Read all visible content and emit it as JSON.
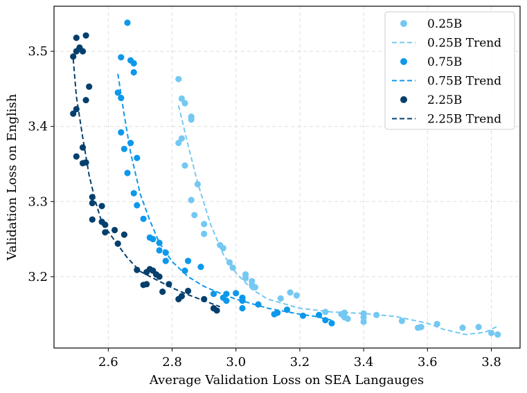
{
  "chart_data": {
    "type": "scatter",
    "xlabel": "Average Validation Loss on SEA Langauges",
    "ylabel": "Validation Loss on English",
    "xlim": [
      2.43,
      3.89
    ],
    "ylim": [
      3.105,
      3.56
    ],
    "xticks": [
      "2.6",
      "2.8",
      "3.0",
      "3.2",
      "3.4",
      "3.6",
      "3.8"
    ],
    "xtick_values": [
      2.6,
      2.8,
      3.0,
      3.2,
      3.4,
      3.6,
      3.8
    ],
    "yticks": [
      "3.2",
      "3.3",
      "3.4",
      "3.5"
    ],
    "ytick_values": [
      3.2,
      3.3,
      3.4,
      3.5
    ],
    "grid": true,
    "legend_position": "top-right",
    "legend": [
      "0.25B",
      "0.25B Trend",
      "0.75B",
      "0.75B Trend",
      "2.25B",
      "2.25B Trend"
    ],
    "series": [
      {
        "name": "0.25B",
        "color": "#74c8f2",
        "trend_name": "0.25B Trend",
        "points": [
          [
            2.82,
            3.463
          ],
          [
            2.83,
            3.437
          ],
          [
            2.84,
            3.431
          ],
          [
            2.86,
            3.413
          ],
          [
            2.86,
            3.409
          ],
          [
            2.82,
            3.378
          ],
          [
            2.83,
            3.384
          ],
          [
            2.84,
            3.348
          ],
          [
            2.88,
            3.323
          ],
          [
            2.86,
            3.302
          ],
          [
            2.87,
            3.282
          ],
          [
            2.9,
            3.27
          ],
          [
            2.9,
            3.257
          ],
          [
            2.95,
            3.242
          ],
          [
            2.96,
            3.238
          ],
          [
            2.98,
            3.219
          ],
          [
            2.99,
            3.212
          ],
          [
            3.03,
            3.198
          ],
          [
            3.03,
            3.203
          ],
          [
            3.05,
            3.194
          ],
          [
            3.05,
            3.189
          ],
          [
            3.06,
            3.186
          ],
          [
            3.14,
            3.171
          ],
          [
            3.17,
            3.179
          ],
          [
            3.19,
            3.175
          ],
          [
            3.28,
            3.153
          ],
          [
            3.33,
            3.15
          ],
          [
            3.34,
            3.146
          ],
          [
            3.34,
            3.152
          ],
          [
            3.35,
            3.144
          ],
          [
            3.4,
            3.151
          ],
          [
            3.4,
            3.146
          ],
          [
            3.4,
            3.14
          ],
          [
            3.44,
            3.149
          ],
          [
            3.52,
            3.141
          ],
          [
            3.57,
            3.132
          ],
          [
            3.58,
            3.133
          ],
          [
            3.63,
            3.137
          ],
          [
            3.71,
            3.132
          ],
          [
            3.76,
            3.133
          ],
          [
            3.8,
            3.125
          ],
          [
            3.82,
            3.123
          ]
        ],
        "trend": [
          [
            2.82,
            3.428
          ],
          [
            2.85,
            3.375
          ],
          [
            2.88,
            3.325
          ],
          [
            2.92,
            3.27
          ],
          [
            2.96,
            3.23
          ],
          [
            3.0,
            3.205
          ],
          [
            3.05,
            3.183
          ],
          [
            3.1,
            3.17
          ],
          [
            3.2,
            3.158
          ],
          [
            3.3,
            3.153
          ],
          [
            3.4,
            3.151
          ],
          [
            3.5,
            3.147
          ],
          [
            3.6,
            3.138
          ],
          [
            3.65,
            3.13
          ],
          [
            3.72,
            3.123
          ],
          [
            3.78,
            3.126
          ],
          [
            3.82,
            3.134
          ]
        ]
      },
      {
        "name": "0.75B",
        "color": "#0d98eb",
        "trend_name": "0.75B Trend",
        "points": [
          [
            2.66,
            3.538
          ],
          [
            2.64,
            3.492
          ],
          [
            2.67,
            3.488
          ],
          [
            2.68,
            3.484
          ],
          [
            2.68,
            3.472
          ],
          [
            2.63,
            3.445
          ],
          [
            2.64,
            3.438
          ],
          [
            2.64,
            3.392
          ],
          [
            2.67,
            3.378
          ],
          [
            2.65,
            3.37
          ],
          [
            2.69,
            3.358
          ],
          [
            2.66,
            3.338
          ],
          [
            2.68,
            3.311
          ],
          [
            2.69,
            3.295
          ],
          [
            2.71,
            3.277
          ],
          [
            2.73,
            3.252
          ],
          [
            2.74,
            3.25
          ],
          [
            2.76,
            3.245
          ],
          [
            2.76,
            3.235
          ],
          [
            2.78,
            3.232
          ],
          [
            2.78,
            3.221
          ],
          [
            2.85,
            3.221
          ],
          [
            2.84,
            3.208
          ],
          [
            2.89,
            3.213
          ],
          [
            2.93,
            3.177
          ],
          [
            2.96,
            3.172
          ],
          [
            2.97,
            3.177
          ],
          [
            2.97,
            3.168
          ],
          [
            3.0,
            3.178
          ],
          [
            3.02,
            3.172
          ],
          [
            3.02,
            3.168
          ],
          [
            3.02,
            3.158
          ],
          [
            3.07,
            3.163
          ],
          [
            3.12,
            3.15
          ],
          [
            3.13,
            3.152
          ],
          [
            3.16,
            3.156
          ],
          [
            3.21,
            3.148
          ],
          [
            3.26,
            3.149
          ],
          [
            3.28,
            3.142
          ],
          [
            3.3,
            3.138
          ]
        ],
        "trend": [
          [
            2.63,
            3.47
          ],
          [
            2.65,
            3.415
          ],
          [
            2.67,
            3.365
          ],
          [
            2.7,
            3.31
          ],
          [
            2.73,
            3.275
          ],
          [
            2.76,
            3.245
          ],
          [
            2.8,
            3.22
          ],
          [
            2.85,
            3.2
          ],
          [
            2.9,
            3.187
          ],
          [
            2.95,
            3.178
          ],
          [
            3.0,
            3.17
          ],
          [
            3.05,
            3.164
          ],
          [
            3.1,
            3.158
          ],
          [
            3.15,
            3.154
          ],
          [
            3.2,
            3.15
          ],
          [
            3.25,
            3.147
          ],
          [
            3.3,
            3.142
          ]
        ]
      },
      {
        "name": "2.25B",
        "color": "#053f6c",
        "trend_name": "2.25B Trend",
        "points": [
          [
            2.53,
            3.521
          ],
          [
            2.5,
            3.518
          ],
          [
            2.51,
            3.505
          ],
          [
            2.5,
            3.5
          ],
          [
            2.52,
            3.5
          ],
          [
            2.49,
            3.493
          ],
          [
            2.54,
            3.453
          ],
          [
            2.53,
            3.435
          ],
          [
            2.5,
            3.423
          ],
          [
            2.49,
            3.417
          ],
          [
            2.52,
            3.372
          ],
          [
            2.5,
            3.36
          ],
          [
            2.52,
            3.351
          ],
          [
            2.53,
            3.352
          ],
          [
            2.55,
            3.306
          ],
          [
            2.55,
            3.298
          ],
          [
            2.58,
            3.294
          ],
          [
            2.55,
            3.276
          ],
          [
            2.58,
            3.273
          ],
          [
            2.59,
            3.269
          ],
          [
            2.62,
            3.262
          ],
          [
            2.59,
            3.259
          ],
          [
            2.65,
            3.256
          ],
          [
            2.63,
            3.244
          ],
          [
            2.69,
            3.209
          ],
          [
            2.72,
            3.206
          ],
          [
            2.73,
            3.21
          ],
          [
            2.74,
            3.208
          ],
          [
            2.76,
            3.2
          ],
          [
            2.75,
            3.203
          ],
          [
            2.72,
            3.19
          ],
          [
            2.71,
            3.189
          ],
          [
            2.79,
            3.19
          ],
          [
            2.77,
            3.18
          ],
          [
            2.85,
            3.181
          ],
          [
            2.83,
            3.174
          ],
          [
            2.82,
            3.17
          ],
          [
            2.9,
            3.17
          ],
          [
            2.93,
            3.158
          ],
          [
            2.94,
            3.155
          ]
        ],
        "trend": [
          [
            2.49,
            3.49
          ],
          [
            2.5,
            3.44
          ],
          [
            2.52,
            3.385
          ],
          [
            2.54,
            3.335
          ],
          [
            2.56,
            3.3
          ],
          [
            2.58,
            3.272
          ],
          [
            2.62,
            3.248
          ],
          [
            2.66,
            3.225
          ],
          [
            2.7,
            3.207
          ],
          [
            2.75,
            3.196
          ],
          [
            2.8,
            3.185
          ],
          [
            2.85,
            3.176
          ],
          [
            2.9,
            3.168
          ],
          [
            2.95,
            3.16
          ]
        ]
      }
    ]
  }
}
